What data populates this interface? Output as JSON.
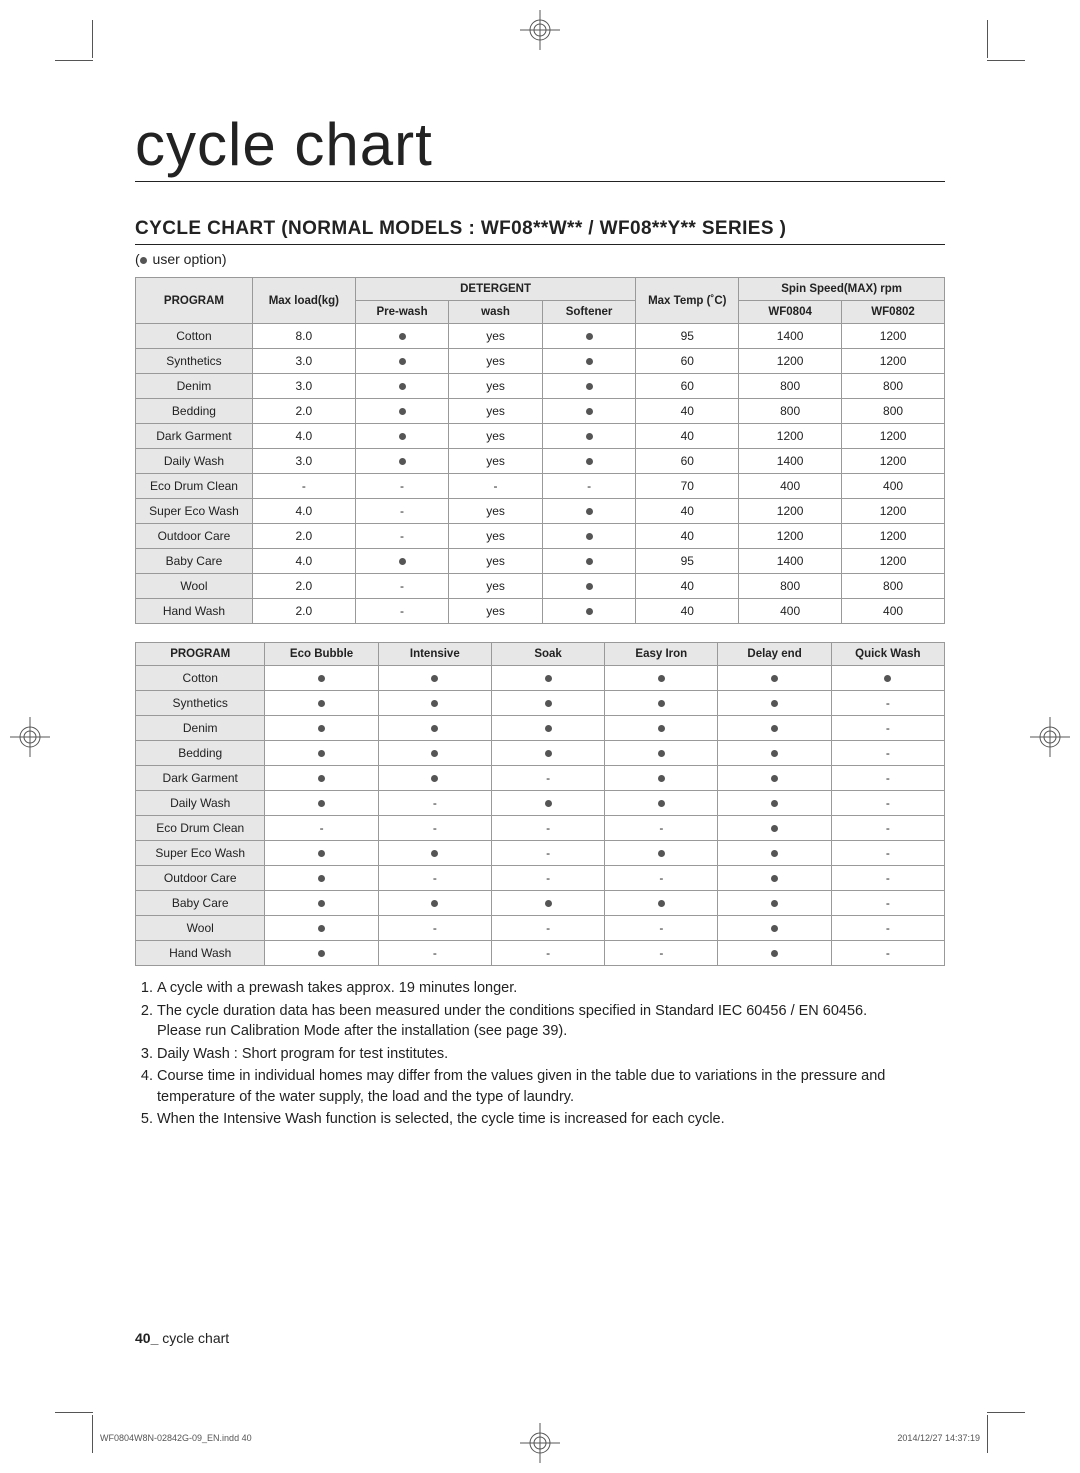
{
  "page_title": "cycle chart",
  "subtitle": "CYCLE CHART (NORMAL MODELS : WF08**W** / WF08**Y** SERIES )",
  "legend_text": " user option)",
  "table1": {
    "headers": {
      "program": "PROGRAM",
      "maxload": "Max load(kg)",
      "detergent": "DETERGENT",
      "prewash": "Pre-wash",
      "wash": "wash",
      "softener": "Softener",
      "maxtemp": "Max Temp (˚C)",
      "spinspeed": "Spin Speed(MAX) rpm",
      "wf0804": "WF0804",
      "wf0802": "WF0802"
    },
    "rows": [
      {
        "program": "Cotton",
        "load": "8.0",
        "prewash": "dot",
        "wash": "yes",
        "softener": "dot",
        "temp": "95",
        "s1": "1400",
        "s2": "1200"
      },
      {
        "program": "Synthetics",
        "load": "3.0",
        "prewash": "dot",
        "wash": "yes",
        "softener": "dot",
        "temp": "60",
        "s1": "1200",
        "s2": "1200"
      },
      {
        "program": "Denim",
        "load": "3.0",
        "prewash": "dot",
        "wash": "yes",
        "softener": "dot",
        "temp": "60",
        "s1": "800",
        "s2": "800"
      },
      {
        "program": "Bedding",
        "load": "2.0",
        "prewash": "dot",
        "wash": "yes",
        "softener": "dot",
        "temp": "40",
        "s1": "800",
        "s2": "800"
      },
      {
        "program": "Dark Garment",
        "load": "4.0",
        "prewash": "dot",
        "wash": "yes",
        "softener": "dot",
        "temp": "40",
        "s1": "1200",
        "s2": "1200"
      },
      {
        "program": "Daily Wash",
        "load": "3.0",
        "prewash": "dot",
        "wash": "yes",
        "softener": "dot",
        "temp": "60",
        "s1": "1400",
        "s2": "1200"
      },
      {
        "program": "Eco Drum Clean",
        "load": "-",
        "prewash": "-",
        "wash": "-",
        "softener": "-",
        "temp": "70",
        "s1": "400",
        "s2": "400"
      },
      {
        "program": "Super Eco Wash",
        "load": "4.0",
        "prewash": "-",
        "wash": "yes",
        "softener": "dot",
        "temp": "40",
        "s1": "1200",
        "s2": "1200"
      },
      {
        "program": "Outdoor Care",
        "load": "2.0",
        "prewash": "-",
        "wash": "yes",
        "softener": "dot",
        "temp": "40",
        "s1": "1200",
        "s2": "1200"
      },
      {
        "program": "Baby Care",
        "load": "4.0",
        "prewash": "dot",
        "wash": "yes",
        "softener": "dot",
        "temp": "95",
        "s1": "1400",
        "s2": "1200"
      },
      {
        "program": "Wool",
        "load": "2.0",
        "prewash": "-",
        "wash": "yes",
        "softener": "dot",
        "temp": "40",
        "s1": "800",
        "s2": "800"
      },
      {
        "program": "Hand Wash",
        "load": "2.0",
        "prewash": "-",
        "wash": "yes",
        "softener": "dot",
        "temp": "40",
        "s1": "400",
        "s2": "400"
      }
    ]
  },
  "table2": {
    "headers": {
      "program": "PROGRAM",
      "eco": "Eco Bubble",
      "intensive": "Intensive",
      "soak": "Soak",
      "easyiron": "Easy Iron",
      "delay": "Delay end",
      "quick": "Quick Wash"
    },
    "rows": [
      {
        "program": "Cotton",
        "eco": "dot",
        "intensive": "dot",
        "soak": "dot",
        "easyiron": "dot",
        "delay": "dot",
        "quick": "dot"
      },
      {
        "program": "Synthetics",
        "eco": "dot",
        "intensive": "dot",
        "soak": "dot",
        "easyiron": "dot",
        "delay": "dot",
        "quick": "-"
      },
      {
        "program": "Denim",
        "eco": "dot",
        "intensive": "dot",
        "soak": "dot",
        "easyiron": "dot",
        "delay": "dot",
        "quick": "-"
      },
      {
        "program": "Bedding",
        "eco": "dot",
        "intensive": "dot",
        "soak": "dot",
        "easyiron": "dot",
        "delay": "dot",
        "quick": "-"
      },
      {
        "program": "Dark Garment",
        "eco": "dot",
        "intensive": "dot",
        "soak": "-",
        "easyiron": "dot",
        "delay": "dot",
        "quick": "-"
      },
      {
        "program": "Daily Wash",
        "eco": "dot",
        "intensive": "-",
        "soak": "dot",
        "easyiron": "dot",
        "delay": "dot",
        "quick": "-"
      },
      {
        "program": "Eco Drum Clean",
        "eco": "-",
        "intensive": "-",
        "soak": "-",
        "easyiron": "-",
        "delay": "dot",
        "quick": "-"
      },
      {
        "program": "Super Eco Wash",
        "eco": "dot",
        "intensive": "dot",
        "soak": "-",
        "easyiron": "dot",
        "delay": "dot",
        "quick": "-"
      },
      {
        "program": "Outdoor Care",
        "eco": "dot",
        "intensive": "-",
        "soak": "-",
        "easyiron": "-",
        "delay": "dot",
        "quick": "-"
      },
      {
        "program": "Baby Care",
        "eco": "dot",
        "intensive": "dot",
        "soak": "dot",
        "easyiron": "dot",
        "delay": "dot",
        "quick": "-"
      },
      {
        "program": "Wool",
        "eco": "dot",
        "intensive": "-",
        "soak": "-",
        "easyiron": "-",
        "delay": "dot",
        "quick": "-"
      },
      {
        "program": "Hand Wash",
        "eco": "dot",
        "intensive": "-",
        "soak": "-",
        "easyiron": "-",
        "delay": "dot",
        "quick": "-"
      }
    ]
  },
  "notes": [
    "A cycle with a prewash takes approx. 19 minutes longer.",
    "The cycle duration data has been measured under the conditions specified in Standard IEC 60456 / EN 60456.\nPlease run Calibration Mode after the installation (see page 39).",
    "Daily Wash : Short program for test institutes.",
    "Course time in individual homes may differ from the values given in the table due to variations in the pressure and temperature of the water supply, the load and the type of laundry.",
    "When the Intensive Wash function is selected, the cycle time is increased for each cycle."
  ],
  "footer": {
    "page_num": "40_",
    "page_label": " cycle chart"
  },
  "print_left": "WF0804W8N-02842G-09_EN.indd   40",
  "print_right": "2014/12/27   14:37:19"
}
